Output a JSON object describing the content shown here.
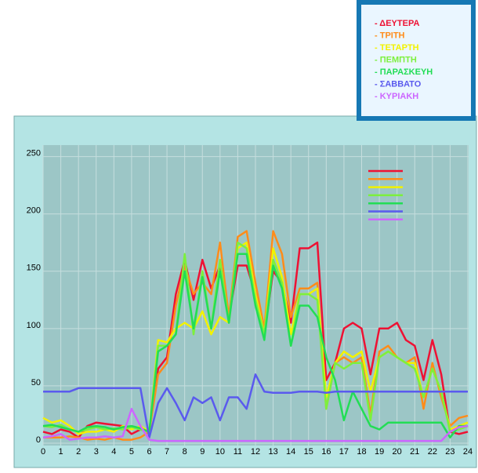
{
  "chart_data": {
    "type": "line",
    "x": [
      0,
      0.5,
      1,
      1.5,
      2,
      2.5,
      3,
      3.5,
      4,
      4.5,
      5,
      5.5,
      6,
      6.5,
      7,
      7.5,
      8,
      8.5,
      9,
      9.5,
      10,
      10.5,
      11,
      11.5,
      12,
      12.5,
      13,
      13.5,
      14,
      14.5,
      15,
      15.5,
      16,
      16.5,
      17,
      17.5,
      18,
      18.5,
      19,
      19.5,
      20,
      20.5,
      21,
      21.5,
      22,
      22.5,
      23,
      23.5,
      24
    ],
    "xlim": [
      0,
      24
    ],
    "xticks": [
      0,
      1,
      2,
      3,
      4,
      5,
      6,
      7,
      8,
      9,
      10,
      11,
      12,
      13,
      14,
      15,
      16,
      17,
      18,
      19,
      20,
      21,
      22,
      23,
      24
    ],
    "ylim": [
      0,
      260
    ],
    "yticks": [
      0,
      50,
      100,
      150,
      200,
      250
    ],
    "grid": true,
    "series": [
      {
        "name": "- ΔΕΥΤΕΡΑ",
        "color": "#ee1133",
        "values": [
          10,
          8,
          12,
          10,
          5,
          15,
          18,
          17,
          16,
          15,
          8,
          12,
          10,
          65,
          75,
          130,
          160,
          125,
          160,
          135,
          155,
          110,
          155,
          155,
          130,
          95,
          150,
          140,
          105,
          170,
          170,
          175,
          55,
          70,
          100,
          105,
          100,
          60,
          100,
          100,
          105,
          90,
          85,
          55,
          90,
          60,
          10,
          8,
          10
        ]
      },
      {
        "name": "- ΤΡΙΤΗ",
        "color": "#ff8c1a",
        "values": [
          5,
          5,
          5,
          6,
          5,
          3,
          4,
          3,
          5,
          3,
          3,
          5,
          10,
          60,
          70,
          120,
          155,
          130,
          140,
          130,
          175,
          110,
          180,
          185,
          140,
          100,
          185,
          165,
          110,
          135,
          135,
          140,
          30,
          70,
          75,
          70,
          75,
          25,
          80,
          85,
          75,
          70,
          75,
          30,
          70,
          40,
          15,
          22,
          24
        ]
      },
      {
        "name": "- ΤΕΤΑΡΤΗ",
        "color": "#f2f200",
        "values": [
          22,
          18,
          20,
          15,
          8,
          10,
          10,
          12,
          10,
          15,
          12,
          15,
          10,
          90,
          88,
          100,
          105,
          100,
          115,
          95,
          110,
          105,
          170,
          175,
          130,
          95,
          170,
          145,
          95,
          130,
          130,
          135,
          40,
          70,
          80,
          75,
          80,
          45,
          75,
          80,
          75,
          70,
          70,
          40,
          65,
          45,
          12,
          15,
          18
        ]
      },
      {
        "name": "- ΠΕΜΠΤΗ",
        "color": "#7cf03c",
        "values": [
          15,
          14,
          16,
          12,
          10,
          12,
          14,
          12,
          13,
          12,
          14,
          12,
          10,
          85,
          85,
          95,
          165,
          95,
          150,
          100,
          160,
          105,
          175,
          170,
          125,
          95,
          160,
          140,
          85,
          130,
          130,
          125,
          30,
          70,
          65,
          70,
          70,
          20,
          75,
          80,
          75,
          70,
          65,
          40,
          65,
          45,
          10,
          12,
          15
        ]
      },
      {
        "name": "- ΠΑΡΑΣΚΕΥΗ",
        "color": "#22dd55",
        "values": [
          15,
          16,
          14,
          12,
          10,
          14,
          15,
          14,
          12,
          14,
          15,
          13,
          10,
          80,
          85,
          95,
          150,
          100,
          145,
          100,
          150,
          105,
          165,
          165,
          120,
          90,
          155,
          135,
          85,
          120,
          120,
          110,
          75,
          55,
          20,
          45,
          30,
          15,
          12,
          18,
          18,
          18,
          18,
          18,
          18,
          18,
          5,
          15,
          15
        ]
      },
      {
        "name": "- ΣΑΒΒΑΤΟ",
        "color": "#5a5aee",
        "values": [
          45,
          45,
          45,
          45,
          48,
          48,
          48,
          48,
          48,
          48,
          48,
          48,
          5,
          35,
          48,
          35,
          20,
          40,
          35,
          40,
          20,
          40,
          40,
          30,
          60,
          45,
          44,
          44,
          44,
          45,
          45,
          45,
          44,
          45,
          45,
          45,
          45,
          45,
          45,
          45,
          45,
          45,
          45,
          45,
          45,
          45,
          45,
          45,
          45
        ]
      },
      {
        "name": "- ΚΥΡΙΑΚΗ",
        "color": "#cc66ff",
        "values": [
          5,
          6,
          8,
          3,
          4,
          5,
          5,
          6,
          5,
          6,
          30,
          15,
          3,
          2,
          2,
          2,
          2,
          2,
          2,
          2,
          2,
          2,
          2,
          2,
          2,
          2,
          2,
          2,
          2,
          2,
          2,
          2,
          2,
          2,
          2,
          2,
          2,
          2,
          2,
          2,
          2,
          2,
          2,
          2,
          2,
          2,
          10,
          14,
          15
        ]
      }
    ]
  }
}
